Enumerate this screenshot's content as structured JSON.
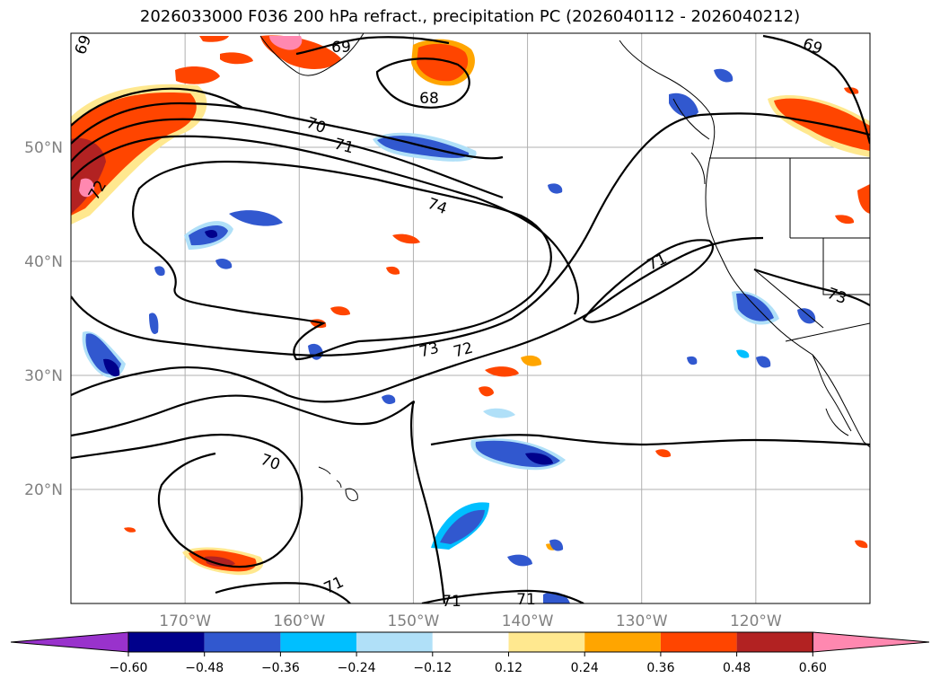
{
  "title": "2026033000 F036 200 hPa refract., precipitation PC (2026040112 - 2026040212)",
  "map": {
    "projection": "lat-lon",
    "lon_range": [
      -180,
      -110
    ],
    "lat_range": [
      10,
      60
    ],
    "grid": true,
    "lat_ticks": [
      "20°N",
      "30°N",
      "40°N",
      "50°N"
    ],
    "lon_ticks": [
      "170°W",
      "160°W",
      "150°W",
      "140°W",
      "130°W",
      "120°W"
    ],
    "contour_labels": [
      "69",
      "69",
      "69",
      "68",
      "70",
      "71",
      "72",
      "74",
      "71",
      "73",
      "73",
      "72",
      "70",
      "71",
      "71",
      "71"
    ]
  },
  "colorbar": {
    "ticks": [
      "−0.60",
      "−0.48",
      "−0.36",
      "−0.24",
      "−0.12",
      "0.12",
      "0.24",
      "0.36",
      "0.48",
      "0.60"
    ],
    "colors": [
      "#9932cc",
      "#00008b",
      "#3158cf",
      "#00bfff",
      "#b0e0f8",
      "#ffffff",
      "#ffe88f",
      "#ffa500",
      "#ff4500",
      "#b22222",
      "#ff88b0"
    ]
  }
}
